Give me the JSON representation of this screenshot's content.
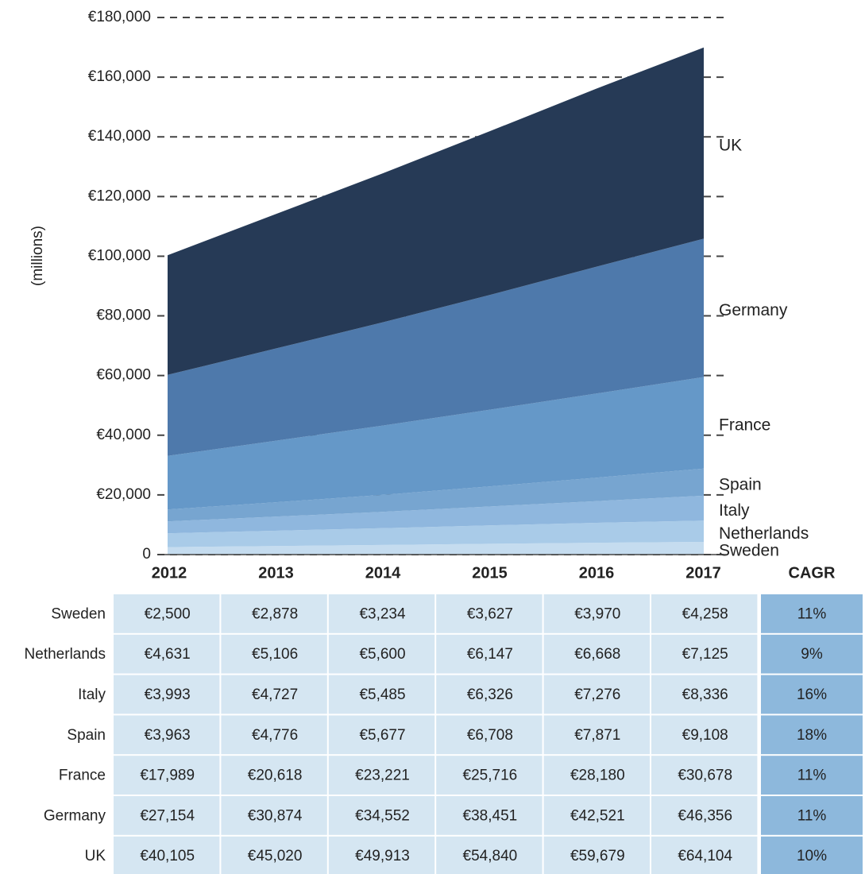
{
  "chart_data": {
    "type": "stacked_area",
    "ylabel": "(millions)",
    "categories": [
      "2012",
      "2013",
      "2014",
      "2015",
      "2016",
      "2017"
    ],
    "ylim": [
      0,
      180000
    ],
    "yticks": [
      0,
      {
        "value": 20000,
        "label": "€20,000"
      },
      {
        "value": 40000,
        "label": "€40,000"
      },
      {
        "value": 60000,
        "label": "€60,000"
      },
      {
        "value": 80000,
        "label": "€80,000"
      },
      {
        "value": 100000,
        "label": "€100,000"
      },
      {
        "value": 120000,
        "label": "€120,000"
      },
      {
        "value": 140000,
        "label": "€140,000"
      },
      {
        "value": 160000,
        "label": "€160,000"
      },
      {
        "value": 180000,
        "label": "€180,000"
      }
    ],
    "grid": true,
    "cagr_header": "CAGR",
    "series": [
      {
        "name": "Sweden",
        "color": "#c5dcef",
        "values": [
          2500,
          2878,
          3234,
          3627,
          3970,
          4258
        ],
        "value_labels": [
          "€2,500",
          "€2,878",
          "€3,234",
          "€3,627",
          "€3,970",
          "€4,258"
        ],
        "cagr": "11%"
      },
      {
        "name": "Netherlands",
        "color": "#a9cbe8",
        "values": [
          4631,
          5106,
          5600,
          6147,
          6668,
          7125
        ],
        "value_labels": [
          "€4,631",
          "€5,106",
          "€5,600",
          "€6,147",
          "€6,668",
          "€7,125"
        ],
        "cagr": "9%"
      },
      {
        "name": "Italy",
        "color": "#8fb7de",
        "values": [
          3993,
          4727,
          5485,
          6326,
          7276,
          8336
        ],
        "value_labels": [
          "€3,993",
          "€4,727",
          "€5,485",
          "€6,326",
          "€7,276",
          "€8,336"
        ],
        "cagr": "16%"
      },
      {
        "name": "Spain",
        "color": "#77a5d0",
        "values": [
          3963,
          4776,
          5677,
          6708,
          7871,
          9108
        ],
        "value_labels": [
          "€3,963",
          "€4,776",
          "€5,677",
          "€6,708",
          "€7,871",
          "€9,108"
        ],
        "cagr": "18%"
      },
      {
        "name": "France",
        "color": "#6598c8",
        "values": [
          17989,
          20618,
          23221,
          25716,
          28180,
          30678
        ],
        "value_labels": [
          "€17,989",
          "€20,618",
          "€23,221",
          "€25,716",
          "€28,180",
          "€30,678"
        ],
        "cagr": "11%"
      },
      {
        "name": "Germany",
        "color": "#4e79ab",
        "values": [
          27154,
          30874,
          34552,
          38451,
          42521,
          46356
        ],
        "value_labels": [
          "€27,154",
          "€30,874",
          "€34,552",
          "€38,451",
          "€42,521",
          "€46,356"
        ],
        "cagr": "11%"
      },
      {
        "name": "UK",
        "color": "#263a56",
        "values": [
          40105,
          45020,
          49913,
          54840,
          59679,
          64104
        ],
        "value_labels": [
          "€40,105",
          "€45,020",
          "€49,913",
          "€54,840",
          "€59,679",
          "€64,104"
        ],
        "cagr": "10%"
      }
    ]
  }
}
